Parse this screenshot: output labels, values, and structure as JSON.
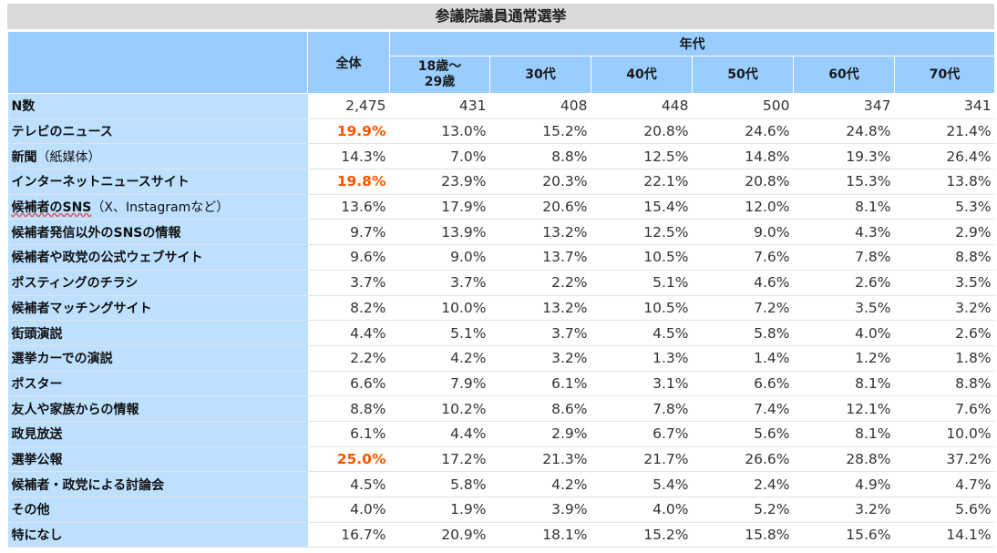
{
  "title": "参議院議員通常選挙",
  "header": {
    "overall": "全体",
    "age_group": "年代",
    "ages": [
      "18歳～\n29歳",
      "30代",
      "40代",
      "50代",
      "60代",
      "70代"
    ]
  },
  "rows": [
    {
      "label": "N数",
      "values": [
        "2,475",
        "431",
        "408",
        "448",
        "500",
        "347",
        "341"
      ],
      "highlight": false
    },
    {
      "label": "テレビのニュース",
      "values": [
        "19.9%",
        "13.0%",
        "15.2%",
        "20.8%",
        "24.6%",
        "24.8%",
        "21.4%"
      ],
      "highlight": true
    },
    {
      "label": "新聞",
      "label_sub": "（紙媒体）",
      "values": [
        "14.3%",
        "7.0%",
        "8.8%",
        "12.5%",
        "14.8%",
        "19.3%",
        "26.4%"
      ],
      "highlight": false
    },
    {
      "label": "インターネットニュースサイト",
      "values": [
        "19.8%",
        "23.9%",
        "20.3%",
        "22.1%",
        "20.8%",
        "15.3%",
        "13.8%"
      ],
      "highlight": true
    },
    {
      "label": "候補者のSNS",
      "label_sub": "（X、Instagramなど）",
      "values": [
        "13.6%",
        "17.9%",
        "20.6%",
        "15.4%",
        "12.0%",
        "8.1%",
        "5.3%"
      ],
      "highlight": false
    },
    {
      "label": "候補者発信以外のSNSの情報",
      "values": [
        "9.7%",
        "13.9%",
        "13.2%",
        "12.5%",
        "9.0%",
        "4.3%",
        "2.9%"
      ],
      "highlight": false
    },
    {
      "label": "候補者や政党の公式ウェブサイト",
      "values": [
        "9.6%",
        "9.0%",
        "13.7%",
        "10.5%",
        "7.6%",
        "7.8%",
        "8.8%"
      ],
      "highlight": false
    },
    {
      "label": "ポスティングのチラシ",
      "values": [
        "3.7%",
        "3.7%",
        "2.2%",
        "5.1%",
        "4.6%",
        "2.6%",
        "3.5%"
      ],
      "highlight": false
    },
    {
      "label": "候補者マッチングサイト",
      "values": [
        "8.2%",
        "10.0%",
        "13.2%",
        "10.5%",
        "7.2%",
        "3.5%",
        "3.2%"
      ],
      "highlight": false
    },
    {
      "label": "街頭演説",
      "values": [
        "4.4%",
        "5.1%",
        "3.7%",
        "4.5%",
        "5.8%",
        "4.0%",
        "2.6%"
      ],
      "highlight": false
    },
    {
      "label": "選挙カーでの演説",
      "values": [
        "2.2%",
        "4.2%",
        "3.2%",
        "1.3%",
        "1.4%",
        "1.2%",
        "1.8%"
      ],
      "highlight": false
    },
    {
      "label": "ポスター",
      "values": [
        "6.6%",
        "7.9%",
        "6.1%",
        "3.1%",
        "6.6%",
        "8.1%",
        "8.8%"
      ],
      "highlight": false
    },
    {
      "label": "友人や家族からの情報",
      "values": [
        "8.8%",
        "10.2%",
        "8.6%",
        "7.8%",
        "7.4%",
        "12.1%",
        "7.6%"
      ],
      "highlight": false
    },
    {
      "label": "政見放送",
      "values": [
        "6.1%",
        "4.4%",
        "2.9%",
        "6.7%",
        "5.6%",
        "8.1%",
        "10.0%"
      ],
      "highlight": false
    },
    {
      "label": "選挙公報",
      "values": [
        "25.0%",
        "17.2%",
        "21.3%",
        "21.7%",
        "26.6%",
        "28.8%",
        "37.2%"
      ],
      "highlight": true
    },
    {
      "label": "候補者・政党による討論会",
      "values": [
        "4.5%",
        "5.8%",
        "4.2%",
        "5.4%",
        "2.4%",
        "4.9%",
        "4.7%"
      ],
      "highlight": false
    },
    {
      "label": "その他",
      "values": [
        "4.0%",
        "1.9%",
        "3.9%",
        "4.0%",
        "5.2%",
        "3.2%",
        "5.6%"
      ],
      "highlight": false
    },
    {
      "label": "特になし",
      "values": [
        "16.7%",
        "20.9%",
        "18.1%",
        "15.2%",
        "15.8%",
        "15.6%",
        "14.1%"
      ],
      "highlight": false
    }
  ],
  "colors": {
    "header_bg": "#99ccff",
    "label_bg": "#bde0ff",
    "highlight": "#ff5500",
    "title_bg": "#d9d9d9"
  }
}
